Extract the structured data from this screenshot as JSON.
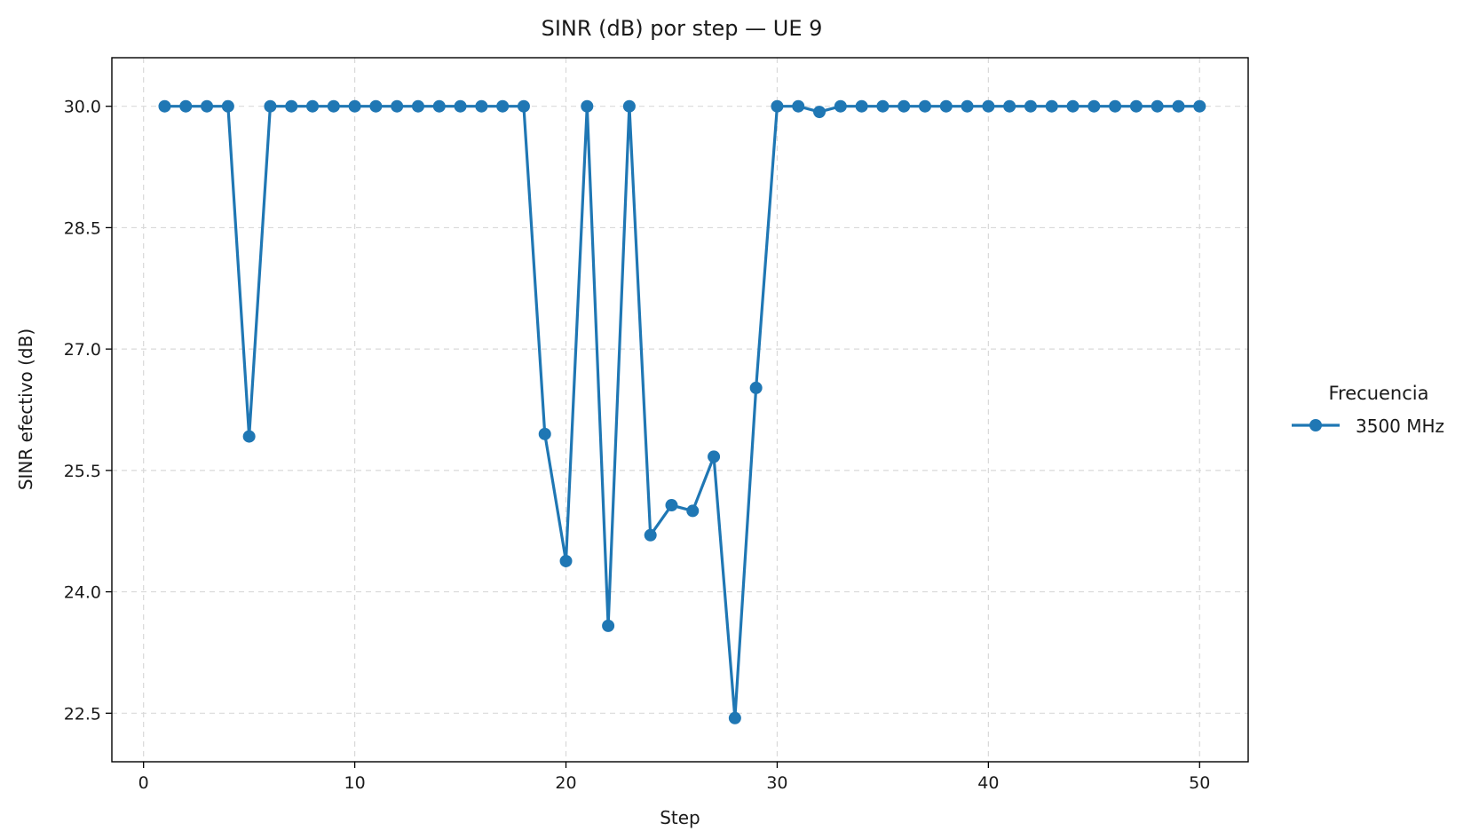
{
  "chart_data": {
    "type": "line",
    "title": "SINR (dB) por step — UE 9",
    "xlabel": "Step",
    "ylabel": "SINR efectivo (dB)",
    "xlim": [
      -1.5,
      52.3
    ],
    "ylim": [
      21.9,
      30.6
    ],
    "xticks": [
      0,
      10,
      20,
      30,
      40,
      50
    ],
    "yticks": [
      22.5,
      24.0,
      25.5,
      27.0,
      28.5,
      30.0
    ],
    "xtick_labels": [
      "0",
      "10",
      "20",
      "30",
      "40",
      "50"
    ],
    "ytick_labels": [
      "22.5",
      "24.0",
      "25.5",
      "27.0",
      "28.5",
      "30.0"
    ],
    "grid": true,
    "legend": {
      "title": "Frecuencia",
      "placement": "right outside"
    },
    "series": [
      {
        "name": "3500 MHz",
        "color": "#1f77b4",
        "marker": "circle",
        "x": [
          1,
          2,
          3,
          4,
          5,
          6,
          7,
          8,
          9,
          10,
          11,
          12,
          13,
          14,
          15,
          16,
          17,
          18,
          19,
          20,
          21,
          22,
          23,
          24,
          25,
          26,
          27,
          28,
          29,
          30,
          31,
          32,
          33,
          34,
          35,
          36,
          37,
          38,
          39,
          40,
          41,
          42,
          43,
          44,
          45,
          46,
          47,
          48,
          49,
          50
        ],
        "values": [
          30.0,
          30.0,
          30.0,
          30.0,
          25.92,
          30.0,
          30.0,
          30.0,
          30.0,
          30.0,
          30.0,
          30.0,
          30.0,
          30.0,
          30.0,
          30.0,
          30.0,
          30.0,
          25.95,
          24.38,
          30.0,
          23.58,
          30.0,
          24.7,
          25.07,
          25.0,
          25.67,
          22.44,
          26.52,
          30.0,
          30.0,
          29.93,
          30.0,
          30.0,
          30.0,
          30.0,
          30.0,
          30.0,
          30.0,
          30.0,
          30.0,
          30.0,
          30.0,
          30.0,
          30.0,
          30.0,
          30.0,
          30.0,
          30.0,
          30.0
        ]
      }
    ]
  }
}
